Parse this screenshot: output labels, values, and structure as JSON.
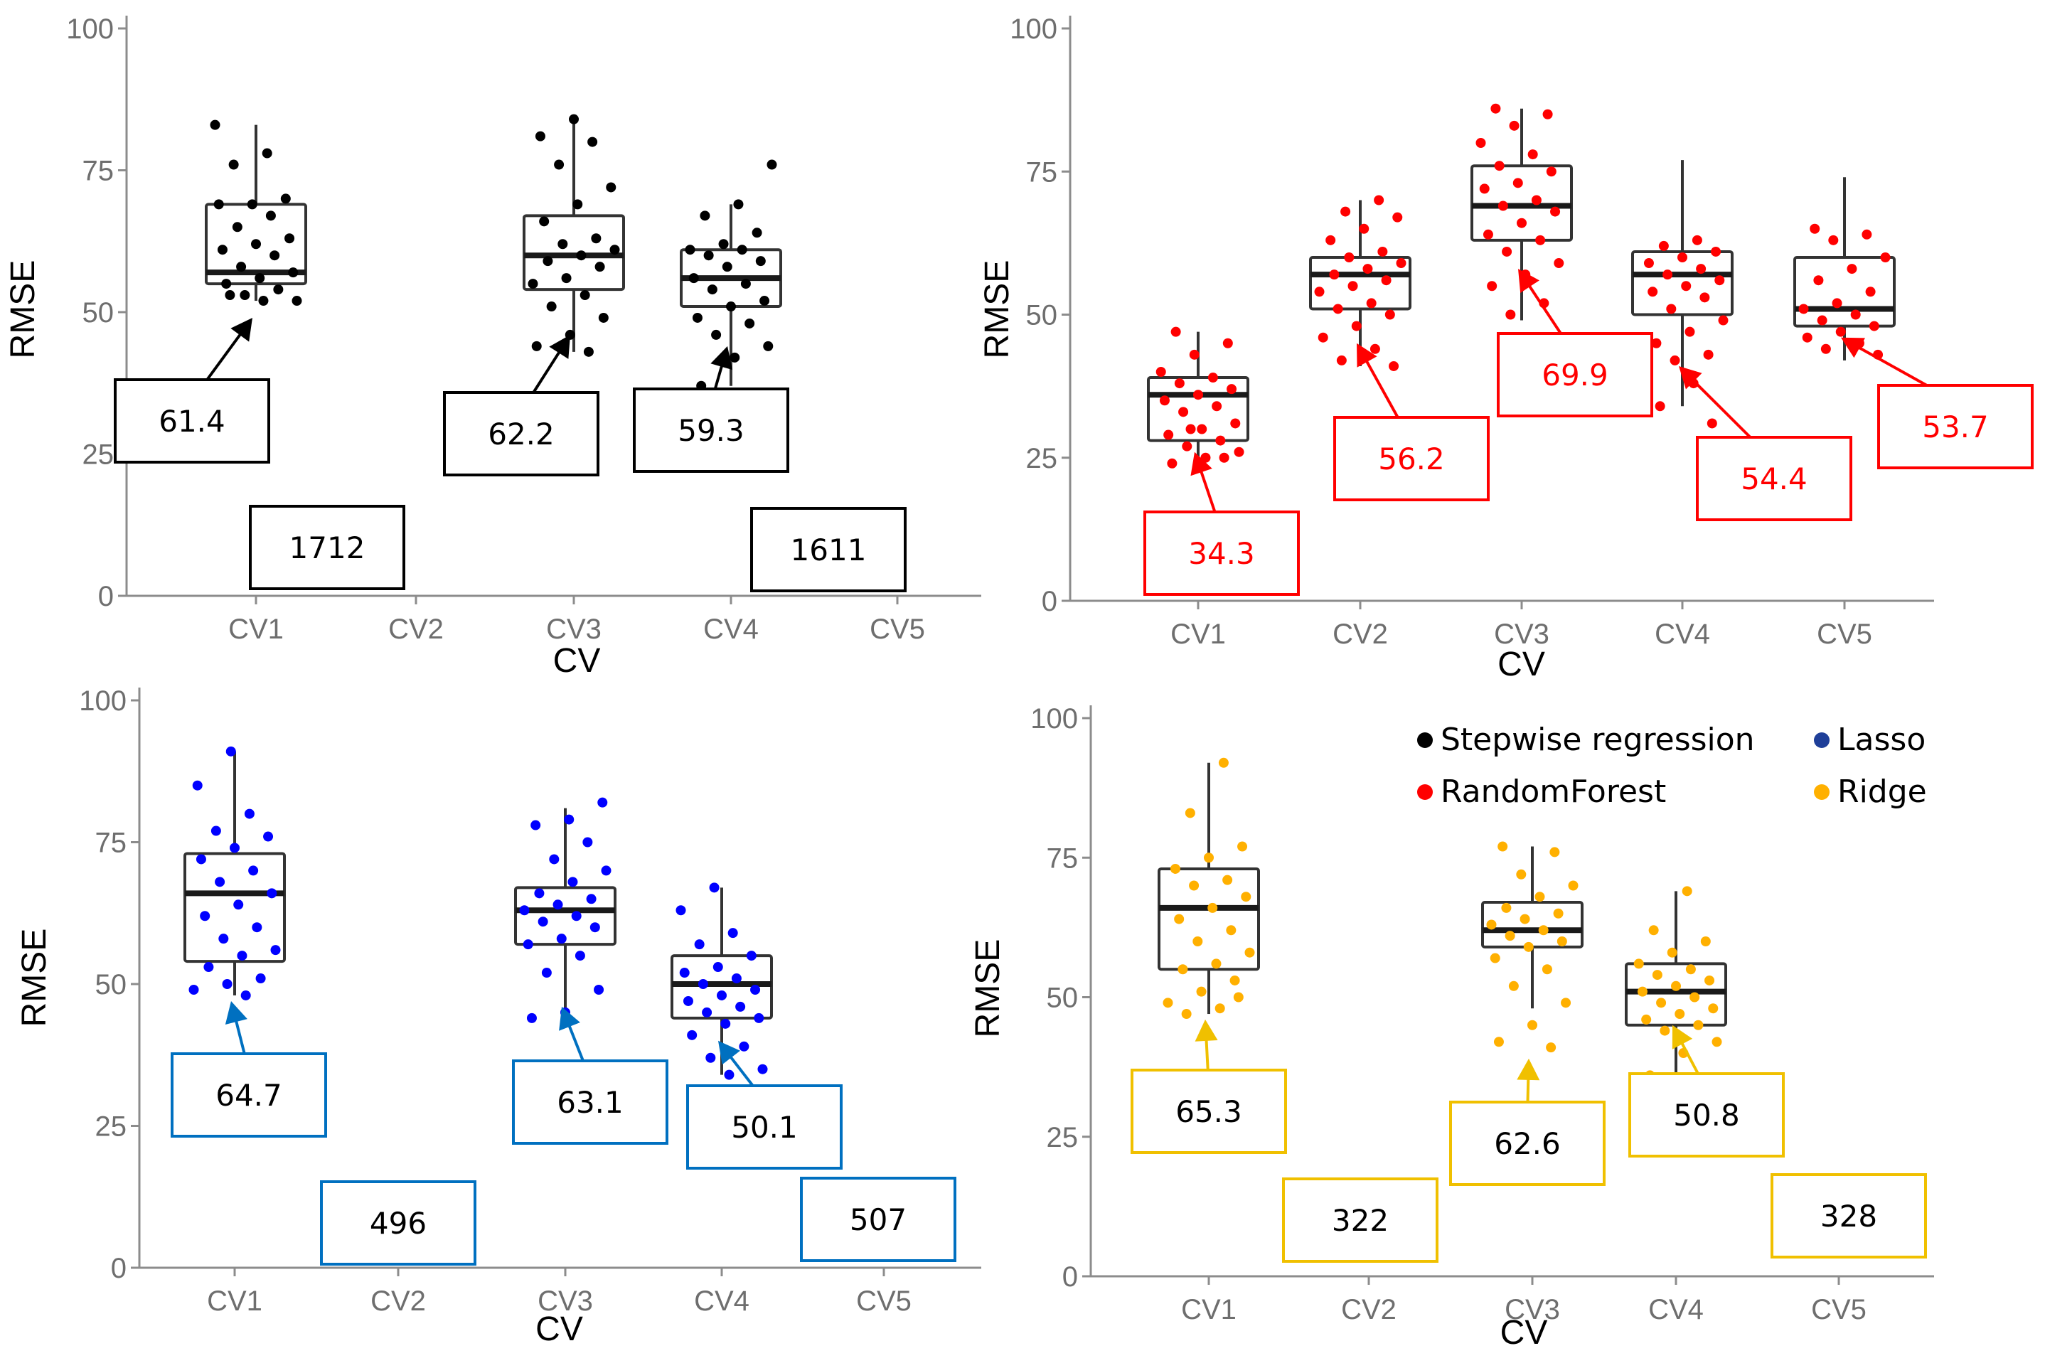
{
  "chart_data": [
    {
      "type": "box",
      "model": "Stepwise regression",
      "color": "#000000",
      "box_edge_color": "#333333",
      "annotation_color": "#000000",
      "xlabel": "CV",
      "ylabel": "RMSE",
      "ylim": [
        0,
        100
      ],
      "yticks": [
        0,
        25,
        50,
        75,
        100
      ],
      "categories": [
        "CV1",
        "CV2",
        "CV3",
        "CV4",
        "CV5"
      ],
      "boxes": [
        {
          "category": "CV1",
          "min": 52,
          "q1": 55,
          "median": 57,
          "q3": 69,
          "max": 83
        },
        null,
        {
          "category": "CV3",
          "min": 43,
          "q1": 54,
          "median": 60,
          "q3": 67,
          "max": 84
        },
        {
          "category": "CV4",
          "min": 37,
          "q1": 51,
          "median": 56,
          "q3": 61,
          "max": 69
        },
        null
      ],
      "points": [
        {
          "category": "CV1",
          "values": [
            83,
            78,
            76,
            70,
            69,
            69,
            67,
            65,
            63,
            62,
            61,
            60,
            58,
            57,
            56,
            55,
            54,
            53,
            52,
            52,
            53
          ]
        },
        {
          "category": "CV3",
          "values": [
            84,
            81,
            80,
            76,
            72,
            69,
            66,
            63,
            62,
            61,
            60,
            59,
            58,
            56,
            55,
            53,
            51,
            49,
            46,
            44,
            43
          ]
        },
        {
          "category": "CV4",
          "values": [
            76,
            69,
            67,
            64,
            62,
            61,
            61,
            60,
            59,
            58,
            56,
            55,
            54,
            52,
            51,
            49,
            48,
            46,
            44,
            42,
            37
          ]
        }
      ],
      "annotations": [
        {
          "label": "61.4",
          "category": "CV1",
          "target": 49
        },
        {
          "label": "1712",
          "category": "CV2"
        },
        {
          "label": "62.2",
          "category": "CV3",
          "target": 46
        },
        {
          "label": "59.3",
          "category": "CV4",
          "target": 44
        },
        {
          "label": "1611",
          "category": "CV5"
        }
      ]
    },
    {
      "type": "box",
      "model": "RandomForest",
      "color": "#ff0000",
      "box_edge_color": "#333333",
      "annotation_color": "#ff0000",
      "xlabel": "CV",
      "ylabel": "RMSE",
      "ylim": [
        0,
        100
      ],
      "yticks": [
        0,
        25,
        50,
        75,
        100
      ],
      "categories": [
        "CV1",
        "CV2",
        "CV3",
        "CV4",
        "CV5"
      ],
      "boxes": [
        {
          "category": "CV1",
          "min": 24,
          "q1": 28,
          "median": 36,
          "q3": 39,
          "max": 47
        },
        {
          "category": "CV2",
          "min": 41,
          "q1": 51,
          "median": 57,
          "q3": 60,
          "max": 70
        },
        {
          "category": "CV3",
          "min": 49,
          "q1": 63,
          "median": 69,
          "q3": 76,
          "max": 86
        },
        {
          "category": "CV4",
          "min": 34,
          "q1": 50,
          "median": 57,
          "q3": 61,
          "max": 77
        },
        {
          "category": "CV5",
          "min": 42,
          "q1": 48,
          "median": 51,
          "q3": 60,
          "max": 74
        }
      ],
      "points": [
        {
          "category": "CV1",
          "values": [
            47,
            45,
            43,
            40,
            39,
            38,
            37,
            36,
            35,
            34,
            33,
            31,
            30,
            29,
            28,
            27,
            26,
            25,
            24,
            25,
            30
          ]
        },
        {
          "category": "CV2",
          "values": [
            70,
            68,
            67,
            65,
            63,
            61,
            60,
            59,
            58,
            57,
            56,
            55,
            54,
            52,
            51,
            50,
            48,
            46,
            44,
            42,
            41
          ]
        },
        {
          "category": "CV3",
          "values": [
            86,
            85,
            83,
            80,
            78,
            76,
            75,
            73,
            72,
            70,
            69,
            68,
            66,
            64,
            63,
            61,
            59,
            57,
            55,
            52,
            50
          ]
        },
        {
          "category": "CV4",
          "values": [
            63,
            62,
            61,
            60,
            59,
            58,
            57,
            56,
            55,
            54,
            53,
            51,
            49,
            47,
            45,
            43,
            42,
            40,
            38,
            34,
            31
          ]
        },
        {
          "category": "CV5",
          "values": [
            65,
            64,
            63,
            60,
            58,
            56,
            54,
            52,
            51,
            50,
            49,
            48,
            47,
            46,
            45,
            44,
            43
          ]
        }
      ],
      "annotations": [
        {
          "label": "34.3",
          "category": "CV1",
          "target": 26
        },
        {
          "label": "56.2",
          "category": "CV2",
          "target": 45
        },
        {
          "label": "69.9",
          "category": "CV3",
          "target": 58
        },
        {
          "label": "54.4",
          "category": "CV4",
          "target": 41
        },
        {
          "label": "53.7",
          "category": "CV5",
          "target": 46
        }
      ]
    },
    {
      "type": "box",
      "model": "Lasso",
      "color": "#0000ff",
      "box_edge_color": "#333333",
      "annotation_color": "#0070c0",
      "xlabel": "CV",
      "ylabel": "RMSE",
      "ylim": [
        0,
        100
      ],
      "yticks": [
        0,
        25,
        50,
        75,
        100
      ],
      "categories": [
        "CV1",
        "CV2",
        "CV3",
        "CV4",
        "CV5"
      ],
      "boxes": [
        {
          "category": "CV1",
          "min": 48,
          "q1": 54,
          "median": 66,
          "q3": 73,
          "max": 91
        },
        null,
        {
          "category": "CV3",
          "min": 45,
          "q1": 57,
          "median": 63,
          "q3": 67,
          "max": 81
        },
        {
          "category": "CV4",
          "min": 34,
          "q1": 44,
          "median": 50,
          "q3": 55,
          "max": 67
        },
        null
      ],
      "points": [
        {
          "category": "CV1",
          "values": [
            91,
            85,
            80,
            77,
            76,
            74,
            72,
            70,
            68,
            66,
            64,
            62,
            60,
            58,
            56,
            55,
            53,
            51,
            50,
            49,
            48
          ]
        },
        {
          "category": "CV3",
          "values": [
            82,
            79,
            78,
            75,
            72,
            70,
            68,
            66,
            65,
            64,
            63,
            62,
            61,
            60,
            58,
            57,
            55,
            52,
            49,
            45,
            44
          ]
        },
        {
          "category": "CV4",
          "values": [
            67,
            63,
            59,
            57,
            55,
            53,
            52,
            51,
            50,
            49,
            48,
            47,
            46,
            45,
            44,
            43,
            41,
            39,
            37,
            35,
            34
          ]
        }
      ],
      "annotations": [
        {
          "label": "64.7",
          "category": "CV1",
          "target": 47
        },
        {
          "label": "496",
          "category": "CV2"
        },
        {
          "label": "63.1",
          "category": "CV3",
          "target": 46
        },
        {
          "label": "50.1",
          "category": "CV4",
          "target": 40
        },
        {
          "label": "507",
          "category": "CV5"
        }
      ]
    },
    {
      "type": "box",
      "model": "Ridge",
      "color": "#ffb000",
      "box_edge_color": "#333333",
      "annotation_color": "#f0c000",
      "xlabel": "CV",
      "ylabel": "RMSE",
      "ylim": [
        0,
        100
      ],
      "yticks": [
        0,
        25,
        50,
        75,
        100
      ],
      "categories": [
        "CV1",
        "CV2",
        "CV3",
        "CV4",
        "CV5"
      ],
      "boxes": [
        {
          "category": "CV1",
          "min": 47,
          "q1": 55,
          "median": 66,
          "q3": 73,
          "max": 92
        },
        null,
        {
          "category": "CV3",
          "min": 48,
          "q1": 59,
          "median": 62,
          "q3": 67,
          "max": 77
        },
        {
          "category": "CV4",
          "min": 34,
          "q1": 45,
          "median": 51,
          "q3": 56,
          "max": 69
        },
        null
      ],
      "points": [
        {
          "category": "CV1",
          "values": [
            92,
            83,
            77,
            75,
            73,
            71,
            70,
            68,
            66,
            64,
            62,
            60,
            58,
            56,
            55,
            53,
            51,
            49,
            48,
            47,
            50
          ]
        },
        {
          "category": "CV3",
          "values": [
            77,
            76,
            72,
            70,
            68,
            66,
            65,
            64,
            63,
            62,
            61,
            60,
            59,
            57,
            55,
            52,
            49,
            45,
            42,
            41
          ]
        },
        {
          "category": "CV4",
          "values": [
            69,
            62,
            60,
            58,
            56,
            55,
            54,
            53,
            52,
            51,
            50,
            49,
            48,
            47,
            46,
            45,
            44,
            42,
            40,
            36,
            33
          ]
        }
      ],
      "annotations": [
        {
          "label": "65.3",
          "category": "CV1",
          "target": 46
        },
        {
          "label": "322",
          "category": "CV2"
        },
        {
          "label": "62.6",
          "category": "CV3",
          "target": 39
        },
        {
          "label": "50.8",
          "category": "CV4",
          "target": 45
        },
        {
          "label": "328",
          "category": "CV5"
        }
      ]
    }
  ],
  "legend": {
    "placement": "top-right of bottom-right panel",
    "items": [
      {
        "label": "Stepwise regression",
        "color": "#000000"
      },
      {
        "label": "Lasso",
        "color": "#1f3f99"
      },
      {
        "label": "RandomForest",
        "color": "#ff0000"
      },
      {
        "label": "Ridge",
        "color": "#ffb000"
      }
    ]
  }
}
